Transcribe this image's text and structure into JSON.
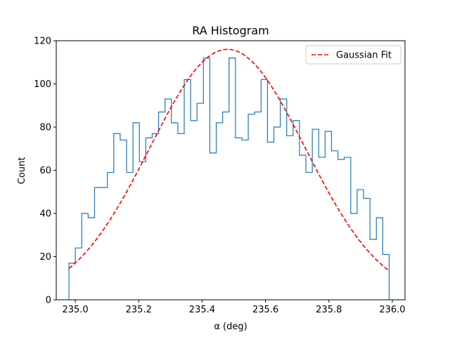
{
  "chart_data": {
    "type": "histogram",
    "title": "RA Histogram",
    "xlabel": "α (deg)",
    "ylabel": "Count",
    "xlim": [
      234.94,
      236.04
    ],
    "ylim": [
      0,
      120
    ],
    "xticks": [
      235.0,
      235.2,
      235.4,
      235.6,
      235.8,
      236.0
    ],
    "xtick_labels": [
      "235.0",
      "235.2",
      "235.4",
      "235.6",
      "235.8",
      "236.0"
    ],
    "yticks": [
      0,
      20,
      40,
      60,
      80,
      100,
      120
    ],
    "ytick_labels": [
      "0",
      "20",
      "40",
      "60",
      "80",
      "100",
      "120"
    ],
    "grid": false,
    "legend_position": "top-right",
    "series": [
      {
        "kind": "step-histogram",
        "color": "#1f77b4",
        "bin_start": 234.98,
        "bin_end": 235.99,
        "counts": [
          17,
          24,
          40,
          38,
          52,
          52,
          59,
          77,
          74,
          59,
          82,
          64,
          75,
          77,
          87,
          93,
          82,
          77,
          102,
          83,
          91,
          112,
          68,
          82,
          87,
          112,
          75,
          74,
          86,
          87,
          102,
          73,
          80,
          93,
          76,
          83,
          67,
          59,
          79,
          66,
          78,
          69,
          65,
          66,
          40,
          51,
          47,
          28,
          38,
          21
        ]
      },
      {
        "kind": "line",
        "name": "Gaussian Fit",
        "color": "#ff0000",
        "dash": "dashed",
        "fit": {
          "amplitude": 116,
          "mean": 235.48,
          "sigma": 0.2452,
          "x_start": 234.98,
          "x_end": 235.99
        }
      }
    ],
    "legend": [
      {
        "label": "Gaussian Fit",
        "color": "#ff0000",
        "style": "dashed"
      }
    ]
  }
}
